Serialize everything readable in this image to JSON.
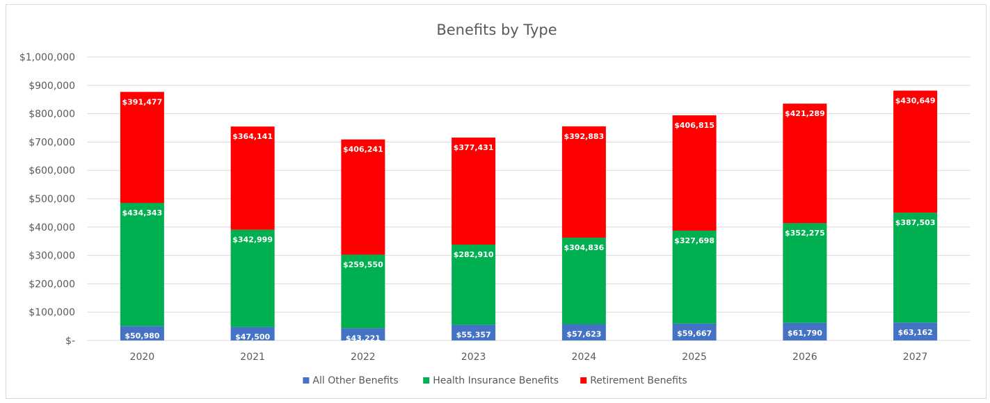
{
  "chart_data": {
    "type": "bar",
    "stacked": true,
    "title": "Benefits by Type",
    "categories": [
      "2020",
      "2021",
      "2022",
      "2023",
      "2024",
      "2025",
      "2026",
      "2027"
    ],
    "series": [
      {
        "name": "All Other Benefits",
        "color": "#4472C4",
        "values": [
          50980,
          47500,
          43221,
          55357,
          57623,
          59667,
          61790,
          63162
        ],
        "labels": [
          "$50,980",
          "$47,500",
          "$43,221",
          "$55,357",
          "$57,623",
          "$59,667",
          "$61,790",
          "$63,162"
        ]
      },
      {
        "name": "Health Insurance Benefits",
        "color": "#00B050",
        "values": [
          434343,
          342999,
          259550,
          282910,
          304836,
          327698,
          352275,
          387503
        ],
        "labels": [
          "$434,343",
          "$342,999",
          "$259,550",
          "$282,910",
          "$304,836",
          "$327,698",
          "$352,275",
          "$387,503"
        ]
      },
      {
        "name": "Retirement Benefits",
        "color": "#FF0000",
        "values": [
          391477,
          364141,
          406241,
          377431,
          392883,
          406815,
          421289,
          430649
        ],
        "labels": [
          "$391,477",
          "$364,141",
          "$406,241",
          "$377,431",
          "$392,883",
          "$406,815",
          "$421,289",
          "$430,649"
        ]
      }
    ],
    "ylim": [
      0,
      1000000
    ],
    "yticks": [
      0,
      100000,
      200000,
      300000,
      400000,
      500000,
      600000,
      700000,
      800000,
      900000,
      1000000
    ],
    "ytick_labels": [
      "$-",
      "$100,000",
      "$200,000",
      "$300,000",
      "$400,000",
      "$500,000",
      "$600,000",
      "$700,000",
      "$800,000",
      "$900,000",
      "$1,000,000"
    ],
    "grid": true,
    "gridline_color": "#d9d9d9",
    "legend_position": "bottom"
  }
}
